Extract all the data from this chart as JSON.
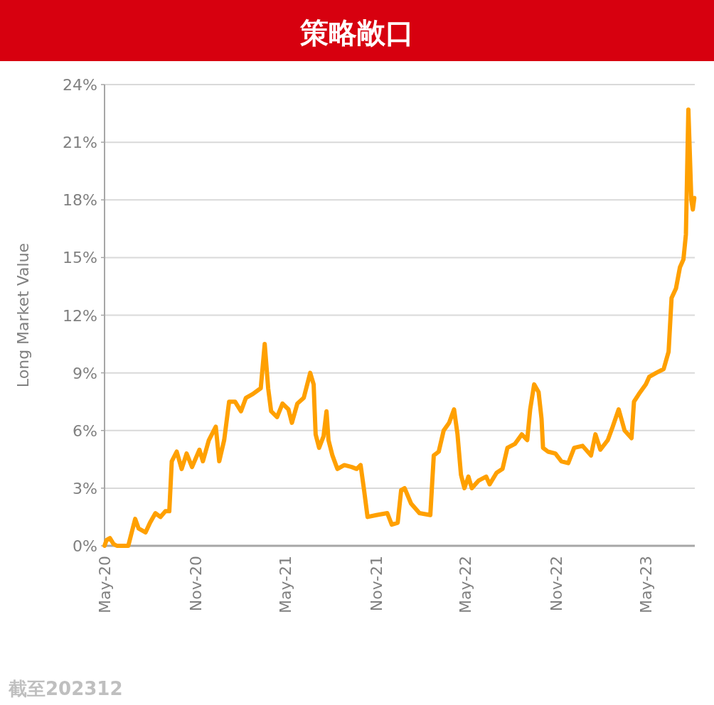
{
  "chart_data": {
    "type": "line",
    "title": "策略敞口",
    "ylabel": "Long Market Value",
    "annotations": [
      "截至202312"
    ],
    "x": [
      "2020-05-01",
      "2020-05-05",
      "2020-05-12",
      "2020-05-19",
      "2020-05-26",
      "2020-06-18",
      "2020-06-25",
      "2020-07-02",
      "2020-07-09",
      "2020-07-23",
      "2020-08-01",
      "2020-08-12",
      "2020-08-22",
      "2020-09-01",
      "2020-09-09",
      "2020-09-14",
      "2020-09-24",
      "2020-10-04",
      "2020-10-14",
      "2020-10-25",
      "2020-11-09",
      "2020-11-16",
      "2020-11-28",
      "2020-12-12",
      "2020-12-19",
      "2020-12-29",
      "2021-01-08",
      "2021-01-20",
      "2021-02-01",
      "2021-02-11",
      "2021-02-25",
      "2021-03-13",
      "2021-03-21",
      "2021-03-28",
      "2021-04-03",
      "2021-04-15",
      "2021-04-26",
      "2021-05-08",
      "2021-05-15",
      "2021-05-26",
      "2021-06-08",
      "2021-06-21",
      "2021-06-28",
      "2021-07-02",
      "2021-07-09",
      "2021-07-18",
      "2021-07-24",
      "2021-07-28",
      "2021-08-05",
      "2021-08-15",
      "2021-08-29",
      "2021-09-13",
      "2021-09-23",
      "2021-10-01",
      "2021-10-08",
      "2021-10-15",
      "2021-11-02",
      "2021-11-24",
      "2021-12-03",
      "2021-12-15",
      "2021-12-22",
      "2021-12-29",
      "2022-01-11",
      "2022-01-28",
      "2022-02-19",
      "2022-02-26",
      "2022-03-08",
      "2022-03-18",
      "2022-03-29",
      "2022-04-08",
      "2022-04-15",
      "2022-04-22",
      "2022-04-29",
      "2022-05-07",
      "2022-05-14",
      "2022-05-28",
      "2022-06-12",
      "2022-06-19",
      "2022-07-03",
      "2022-07-15",
      "2022-07-25",
      "2022-08-09",
      "2022-08-23",
      "2022-09-03",
      "2022-09-09",
      "2022-09-17",
      "2022-09-26",
      "2022-10-02",
      "2022-10-05",
      "2022-10-15",
      "2022-10-30",
      "2022-11-11",
      "2022-11-25",
      "2022-12-07",
      "2022-12-24",
      "2023-01-10",
      "2023-01-19",
      "2023-01-29",
      "2023-02-13",
      "2023-02-23",
      "2023-03-07",
      "2023-03-19",
      "2023-04-02",
      "2023-04-07",
      "2023-04-17",
      "2023-05-01",
      "2023-05-08",
      "2023-05-22",
      "2023-06-06",
      "2023-06-16",
      "2023-06-22",
      "2023-07-01",
      "2023-07-09",
      "2023-07-16",
      "2023-07-21",
      "2023-07-26",
      "2023-08-01",
      "2023-08-04",
      "2023-08-07"
    ],
    "series": [
      {
        "color": "#ffa000",
        "values": [
          0,
          0.3,
          0.4,
          0.1,
          0,
          0,
          0.7,
          1.4,
          0.9,
          0.7,
          1.2,
          1.7,
          1.5,
          1.8,
          1.8,
          4.4,
          4.9,
          4.0,
          4.8,
          4.1,
          5.0,
          4.4,
          5.5,
          6.2,
          4.4,
          5.5,
          7.5,
          7.5,
          7.0,
          7.7,
          7.9,
          8.2,
          10.5,
          8.2,
          7.0,
          6.7,
          7.4,
          7.1,
          6.4,
          7.4,
          7.7,
          9.0,
          8.4,
          5.8,
          5.1,
          5.7,
          7.0,
          5.5,
          4.7,
          4.0,
          4.2,
          4.1,
          4.0,
          4.2,
          2.9,
          1.5,
          1.6,
          1.7,
          1.1,
          1.2,
          2.9,
          3.0,
          2.2,
          1.7,
          1.6,
          4.7,
          4.9,
          6.0,
          6.4,
          7.1,
          5.8,
          3.7,
          3.0,
          3.6,
          3.0,
          3.4,
          3.6,
          3.2,
          3.8,
          4.0,
          5.1,
          5.3,
          5.8,
          5.5,
          7.1,
          8.4,
          8.0,
          6.6,
          5.1,
          4.9,
          4.8,
          4.4,
          4.3,
          5.1,
          5.2,
          4.7,
          5.8,
          5.0,
          5.5,
          6.2,
          7.1,
          6.0,
          5.6,
          7.5,
          7.9,
          8.4,
          8.8,
          9.0,
          9.2,
          10.1,
          12.9,
          13.4,
          14.5,
          14.9,
          16.2,
          22.7,
          18.0,
          17.5,
          18.1
        ]
      }
    ],
    "xlim": [
      "2020-05-01",
      "2023-08-08"
    ],
    "xticks": [
      {
        "value": "2020-05-01",
        "label": "May-20"
      },
      {
        "value": "2020-11-01",
        "label": "Nov-20"
      },
      {
        "value": "2021-05-01",
        "label": "May-21"
      },
      {
        "value": "2021-11-01",
        "label": "Nov-21"
      },
      {
        "value": "2022-05-01",
        "label": "May-22"
      },
      {
        "value": "2022-11-01",
        "label": "Nov-22"
      },
      {
        "value": "2023-05-01",
        "label": "May-23"
      }
    ],
    "ylim": [
      0,
      24
    ],
    "yticks": [
      {
        "value": 0,
        "label": "0%"
      },
      {
        "value": 3,
        "label": "3%"
      },
      {
        "value": 6,
        "label": "6%"
      },
      {
        "value": 9,
        "label": "9%"
      },
      {
        "value": 12,
        "label": "12%"
      },
      {
        "value": 15,
        "label": "15%"
      },
      {
        "value": 18,
        "label": "18%"
      },
      {
        "value": 21,
        "label": "21%"
      },
      {
        "value": 24,
        "label": "24%"
      }
    ],
    "grid": "y"
  }
}
